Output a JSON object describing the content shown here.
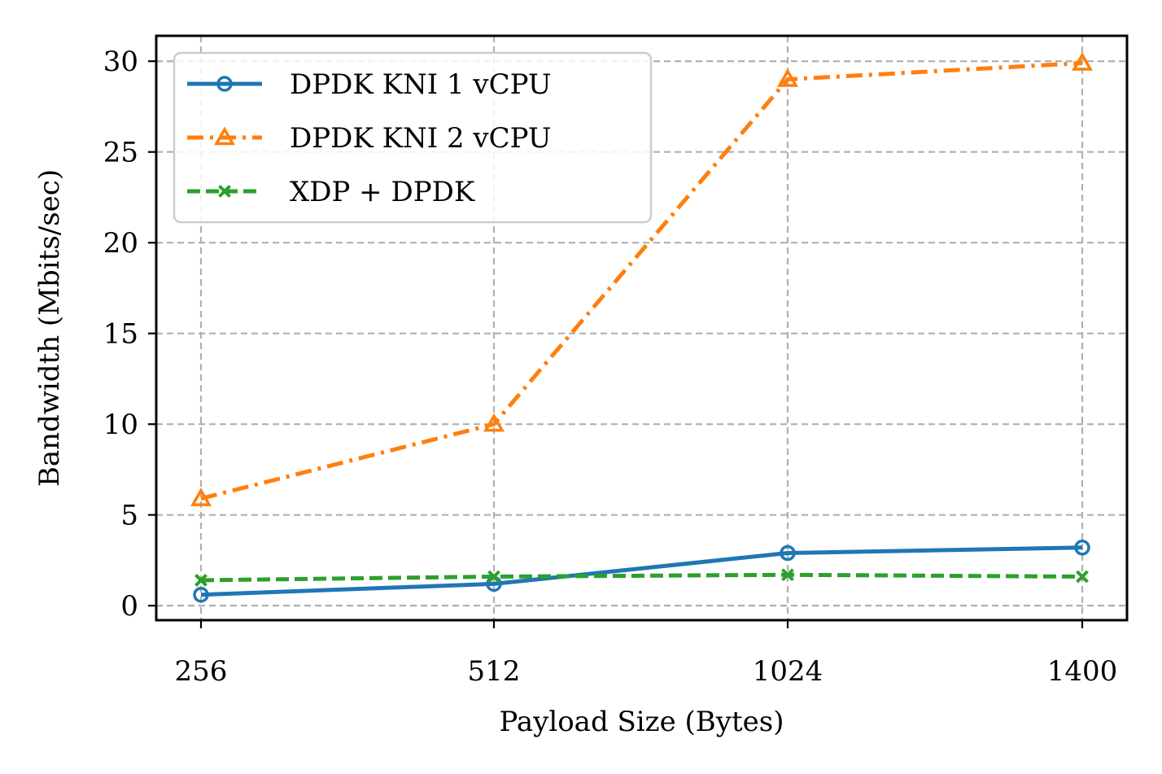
{
  "chart_data": {
    "type": "line",
    "title": "",
    "xlabel": "Payload Size (Bytes)",
    "ylabel": "Bandwidth (Mbits/sec)",
    "categories": [
      "256",
      "512",
      "1024",
      "1400"
    ],
    "ylim": [
      -0.8,
      31.4
    ],
    "yticks": [
      "0",
      "5",
      "10",
      "15",
      "20",
      "25",
      "30"
    ],
    "grid": true,
    "legend_position": "top-left",
    "series": [
      {
        "name": "DPDK KNI 1 vCPU",
        "values": [
          0.6,
          1.2,
          2.9,
          3.2
        ],
        "color": "#1f77b4",
        "line_style": "solid",
        "marker": "circle"
      },
      {
        "name": "DPDK KNI 2 vCPU",
        "values": [
          5.9,
          10.0,
          29.0,
          29.9
        ],
        "color": "#ff7f0e",
        "line_style": "dash-dot",
        "marker": "triangle"
      },
      {
        "name": "XDP + DPDK",
        "values": [
          1.4,
          1.6,
          1.7,
          1.6
        ],
        "color": "#2ca02c",
        "line_style": "dashed",
        "marker": "x"
      }
    ]
  }
}
